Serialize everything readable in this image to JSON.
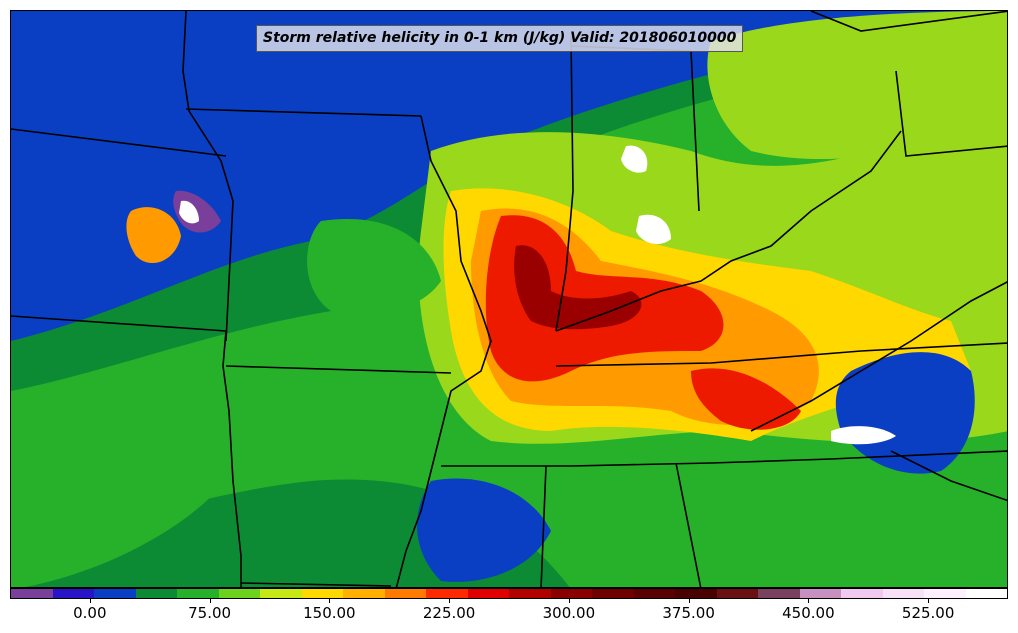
{
  "title": "Storm relative helicity in 0-1 km (J/kg) Valid: 201806010000",
  "colorbar": {
    "colors": [
      "#7a3f9a",
      "#2a14c8",
      "#0a3fc4",
      "#0c8a34",
      "#27b02a",
      "#6cd21e",
      "#c6e814",
      "#ffd800",
      "#ffb000",
      "#ff7a00",
      "#ff2a00",
      "#e00000",
      "#b00000",
      "#8a0000",
      "#6e0000",
      "#5a0000",
      "#480000",
      "#6a1010",
      "#7a4060",
      "#c890c0",
      "#f0c8f0",
      "#f8e0f8",
      "#fff0ff",
      "#ffffff"
    ],
    "tick_labels": [
      "0.00",
      "75.00",
      "150.00",
      "225.00",
      "300.00",
      "375.00",
      "450.00",
      "525.00"
    ],
    "tick_values": [
      0,
      75,
      150,
      225,
      300,
      375,
      450,
      525
    ],
    "range": [
      -50,
      575
    ]
  },
  "map": {
    "fill_colors": {
      "base": "#0a3fc4",
      "green_dark": "#0c8a34",
      "green": "#27b02a",
      "lime": "#9ad81c",
      "yellow": "#ffd800",
      "orange": "#ff9a00",
      "red": "#ee1a00",
      "darkred": "#9a0000",
      "purple": "#7a3f9a",
      "white": "#ffffff"
    }
  }
}
